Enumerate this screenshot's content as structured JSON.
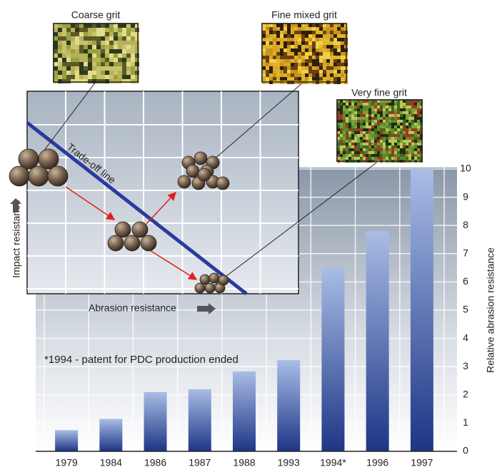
{
  "chart_data": {
    "type": "bar",
    "categories": [
      "1979",
      "1984",
      "1986",
      "1987",
      "1988",
      "1993",
      "1994*",
      "1996",
      "1997"
    ],
    "values": [
      0.75,
      1.15,
      2.1,
      2.2,
      2.83,
      3.23,
      6.5,
      7.8,
      10
    ],
    "ylim": [
      0,
      10
    ],
    "yticks": [
      0,
      1,
      2,
      3,
      4,
      5,
      6,
      7,
      8,
      9,
      10
    ],
    "y_label": "Relative abrasion resistance",
    "annotation": "*1994 - patent for PDC production ended",
    "color": "#2e4a9a",
    "grid": true
  },
  "inset": {
    "coarse": "Coarse grit",
    "fine_mixed": "Fine mixed grit",
    "very_fine": "Very fine grit",
    "tradeoff": "Trade-off line",
    "impact": "Impact resistance",
    "abrasion": "Abrasion resistance"
  }
}
